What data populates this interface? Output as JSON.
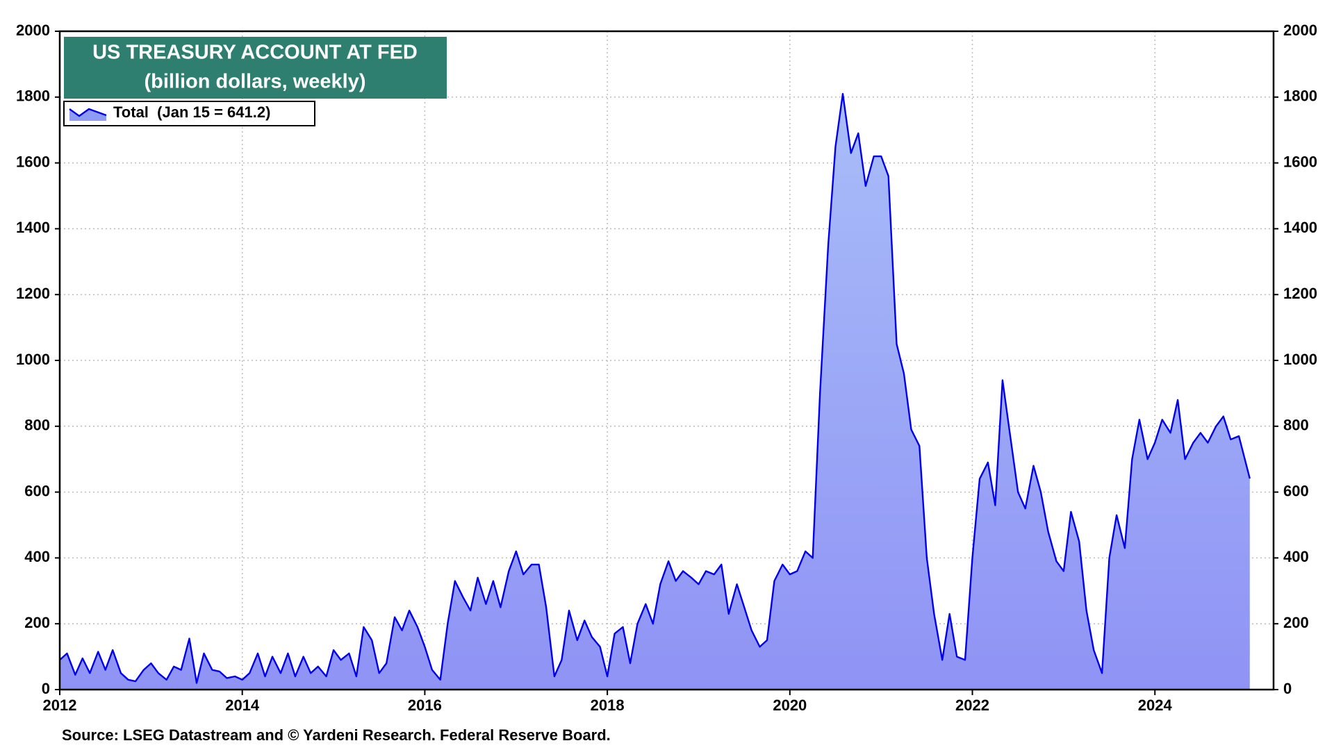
{
  "chart_data": {
    "type": "area",
    "title": "US TREASURY ACCOUNT AT FED",
    "subtitle": "(billion dollars, weekly)",
    "source": "Source: LSEG Datastream and © Yardeni Research. Federal Reserve Board.",
    "x": [
      2012.0,
      2012.08,
      2012.17,
      2012.25,
      2012.33,
      2012.42,
      2012.5,
      2012.58,
      2012.67,
      2012.75,
      2012.83,
      2012.92,
      2013.0,
      2013.08,
      2013.17,
      2013.25,
      2013.33,
      2013.42,
      2013.5,
      2013.58,
      2013.67,
      2013.75,
      2013.83,
      2013.92,
      2014.0,
      2014.08,
      2014.17,
      2014.25,
      2014.33,
      2014.42,
      2014.5,
      2014.58,
      2014.67,
      2014.75,
      2014.83,
      2014.92,
      2015.0,
      2015.08,
      2015.17,
      2015.25,
      2015.33,
      2015.42,
      2015.5,
      2015.58,
      2015.67,
      2015.75,
      2015.83,
      2015.92,
      2016.0,
      2016.08,
      2016.17,
      2016.25,
      2016.33,
      2016.42,
      2016.5,
      2016.58,
      2016.67,
      2016.75,
      2016.83,
      2016.92,
      2017.0,
      2017.08,
      2017.17,
      2017.25,
      2017.33,
      2017.42,
      2017.5,
      2017.58,
      2017.67,
      2017.75,
      2017.83,
      2017.92,
      2018.0,
      2018.08,
      2018.17,
      2018.25,
      2018.33,
      2018.42,
      2018.5,
      2018.58,
      2018.67,
      2018.75,
      2018.83,
      2018.92,
      2019.0,
      2019.08,
      2019.17,
      2019.25,
      2019.33,
      2019.42,
      2019.5,
      2019.58,
      2019.67,
      2019.75,
      2019.83,
      2019.92,
      2020.0,
      2020.08,
      2020.17,
      2020.25,
      2020.33,
      2020.42,
      2020.5,
      2020.58,
      2020.67,
      2020.75,
      2020.83,
      2020.92,
      2021.0,
      2021.08,
      2021.17,
      2021.25,
      2021.33,
      2021.42,
      2021.5,
      2021.58,
      2021.67,
      2021.75,
      2021.83,
      2021.92,
      2022.0,
      2022.08,
      2022.17,
      2022.25,
      2022.33,
      2022.42,
      2022.5,
      2022.58,
      2022.67,
      2022.75,
      2022.83,
      2022.92,
      2023.0,
      2023.08,
      2023.17,
      2023.25,
      2023.33,
      2023.42,
      2023.5,
      2023.58,
      2023.67,
      2023.75,
      2023.83,
      2023.92,
      2024.0,
      2024.08,
      2024.17,
      2024.25,
      2024.33,
      2024.42,
      2024.5,
      2024.58,
      2024.67,
      2024.75,
      2024.83,
      2024.92,
      2025.04
    ],
    "series": [
      {
        "name": "Total  (Jan 15 = 641.2)",
        "color": "#0000ee",
        "fill": "#8e9cf5",
        "values": [
          90,
          110,
          45,
          95,
          50,
          115,
          60,
          120,
          50,
          30,
          25,
          60,
          80,
          50,
          30,
          70,
          60,
          155,
          20,
          110,
          60,
          55,
          35,
          40,
          30,
          50,
          110,
          40,
          100,
          50,
          110,
          40,
          100,
          50,
          70,
          40,
          120,
          90,
          110,
          40,
          190,
          150,
          50,
          80,
          220,
          180,
          240,
          190,
          130,
          60,
          30,
          200,
          330,
          280,
          240,
          340,
          260,
          330,
          250,
          360,
          420,
          350,
          380,
          380,
          250,
          40,
          90,
          240,
          150,
          210,
          160,
          130,
          40,
          170,
          190,
          80,
          200,
          260,
          200,
          320,
          390,
          330,
          360,
          340,
          320,
          360,
          350,
          380,
          230,
          320,
          250,
          180,
          130,
          150,
          330,
          380,
          350,
          360,
          420,
          400,
          900,
          1350,
          1650,
          1810,
          1630,
          1690,
          1530,
          1620,
          1620,
          1560,
          1050,
          960,
          790,
          740,
          400,
          230,
          90,
          230,
          100,
          90,
          400,
          640,
          690,
          560,
          940,
          760,
          600,
          550,
          680,
          600,
          480,
          390,
          360,
          540,
          450,
          240,
          120,
          50,
          400,
          530,
          430,
          700,
          820,
          700,
          750,
          820,
          780,
          880,
          700,
          750,
          780,
          750,
          800,
          830,
          760,
          770,
          641.2
        ]
      }
    ],
    "xlim": [
      2012,
      2025.3
    ],
    "xticks": [
      2012,
      2014,
      2016,
      2018,
      2020,
      2022,
      2024
    ],
    "ylim": [
      0,
      2000
    ],
    "yticks": [
      0,
      200,
      400,
      600,
      800,
      1000,
      1200,
      1400,
      1600,
      1800,
      2000
    ],
    "grid": true
  }
}
